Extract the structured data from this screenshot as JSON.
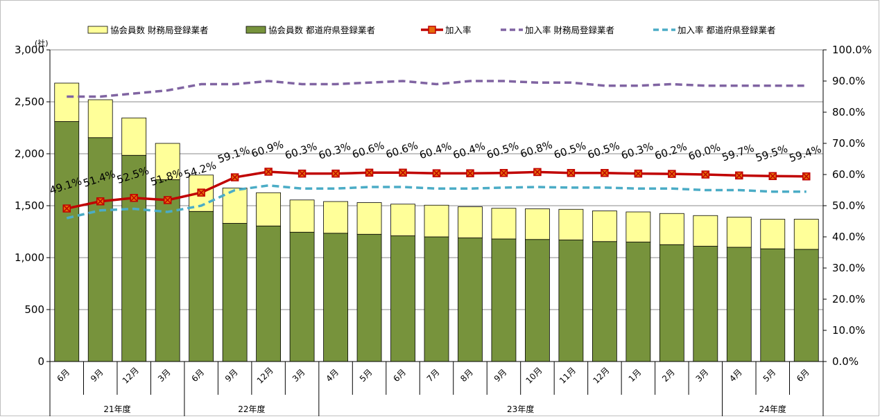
{
  "chart_data": {
    "type": "bar",
    "stacked": true,
    "unit_label": "(社)",
    "categories": [
      "6月",
      "9月",
      "12月",
      "3月",
      "6月",
      "9月",
      "12月",
      "3月",
      "4月",
      "5月",
      "6月",
      "7月",
      "8月",
      "9月",
      "10月",
      "11月",
      "12月",
      "1月",
      "2月",
      "3月",
      "4月",
      "5月",
      "6月"
    ],
    "fiscal_years": [
      {
        "label": "21年度",
        "span": 4
      },
      {
        "label": "22年度",
        "span": 4
      },
      {
        "label": "23年度",
        "span": 12
      },
      {
        "label": "24年度",
        "span": 3
      }
    ],
    "y_left": {
      "ticks": [
        "0",
        "500",
        "1,000",
        "1,500",
        "2,000",
        "2,500",
        "3,000"
      ],
      "lim": [
        0,
        3000
      ]
    },
    "y_right": {
      "ticks": [
        "0.0%",
        "10.0%",
        "20.0%",
        "30.0%",
        "40.0%",
        "50.0%",
        "60.0%",
        "70.0%",
        "80.0%",
        "90.0%",
        "100.0%"
      ],
      "lim": [
        0,
        100
      ]
    },
    "series": [
      {
        "name": "協会員数 財務局登録業者",
        "kind": "bar",
        "color": "#ffff99",
        "values": [
          370,
          365,
          360,
          350,
          350,
          340,
          320,
          310,
          305,
          305,
          305,
          305,
          300,
          295,
          295,
          295,
          295,
          290,
          300,
          295,
          290,
          285,
          290
        ]
      },
      {
        "name": "協会員数 都道府県登録業者",
        "kind": "bar",
        "color": "#77933c",
        "values": [
          2310,
          2155,
          1985,
          1750,
          1445,
          1330,
          1305,
          1245,
          1235,
          1225,
          1210,
          1200,
          1190,
          1180,
          1175,
          1170,
          1155,
          1150,
          1125,
          1110,
          1100,
          1085,
          1080
        ]
      },
      {
        "name": "加入率",
        "kind": "line",
        "color": "#c00000",
        "values": [
          49.1,
          51.4,
          52.5,
          51.8,
          54.2,
          59.1,
          60.9,
          60.3,
          60.3,
          60.6,
          60.6,
          60.4,
          60.4,
          60.5,
          60.8,
          60.5,
          60.5,
          60.3,
          60.2,
          60.0,
          59.7,
          59.5,
          59.4
        ],
        "labels": [
          "49.1%",
          "51.4%",
          "52.5%",
          "51.8%",
          "54.2%",
          "59.1%",
          "60.9%",
          "60.3%",
          "60.3%",
          "60.6%",
          "60.6%",
          "60.4%",
          "60.4%",
          "60.5%",
          "60.8%",
          "60.5%",
          "60.5%",
          "60.3%",
          "60.2%",
          "60.0%",
          "59.7%",
          "59.5%",
          "59.4%"
        ]
      },
      {
        "name": "加入率 財務局登録業者",
        "kind": "dash",
        "color": "#8064a2",
        "values": [
          85,
          85,
          86,
          87,
          89,
          89,
          90,
          89,
          89,
          89.5,
          90,
          89,
          90,
          90,
          89.5,
          89.5,
          88.5,
          88.5,
          89,
          88.5,
          88.5,
          88.5,
          88.5
        ]
      },
      {
        "name": "加入率 都道府県登録業者",
        "kind": "dash",
        "color": "#4bacc6",
        "values": [
          46,
          48.5,
          49,
          48,
          50,
          55,
          56.5,
          55.5,
          55.5,
          56,
          56,
          55.5,
          55.5,
          55.8,
          56,
          55.8,
          55.8,
          55.5,
          55.5,
          55,
          55,
          54.5,
          54.5
        ]
      }
    ]
  }
}
